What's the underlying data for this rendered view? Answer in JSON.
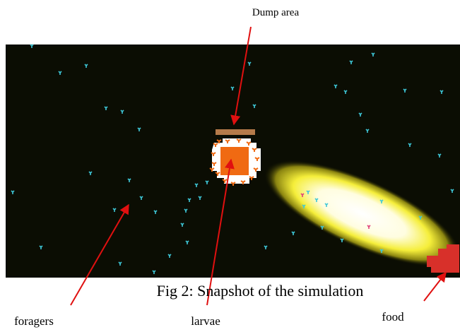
{
  "annotations": {
    "dump": "Dump area",
    "foragers": "foragers",
    "larvae": "larvae",
    "food": "food"
  },
  "caption": "Fig 2: Snapshot of the simulation"
}
